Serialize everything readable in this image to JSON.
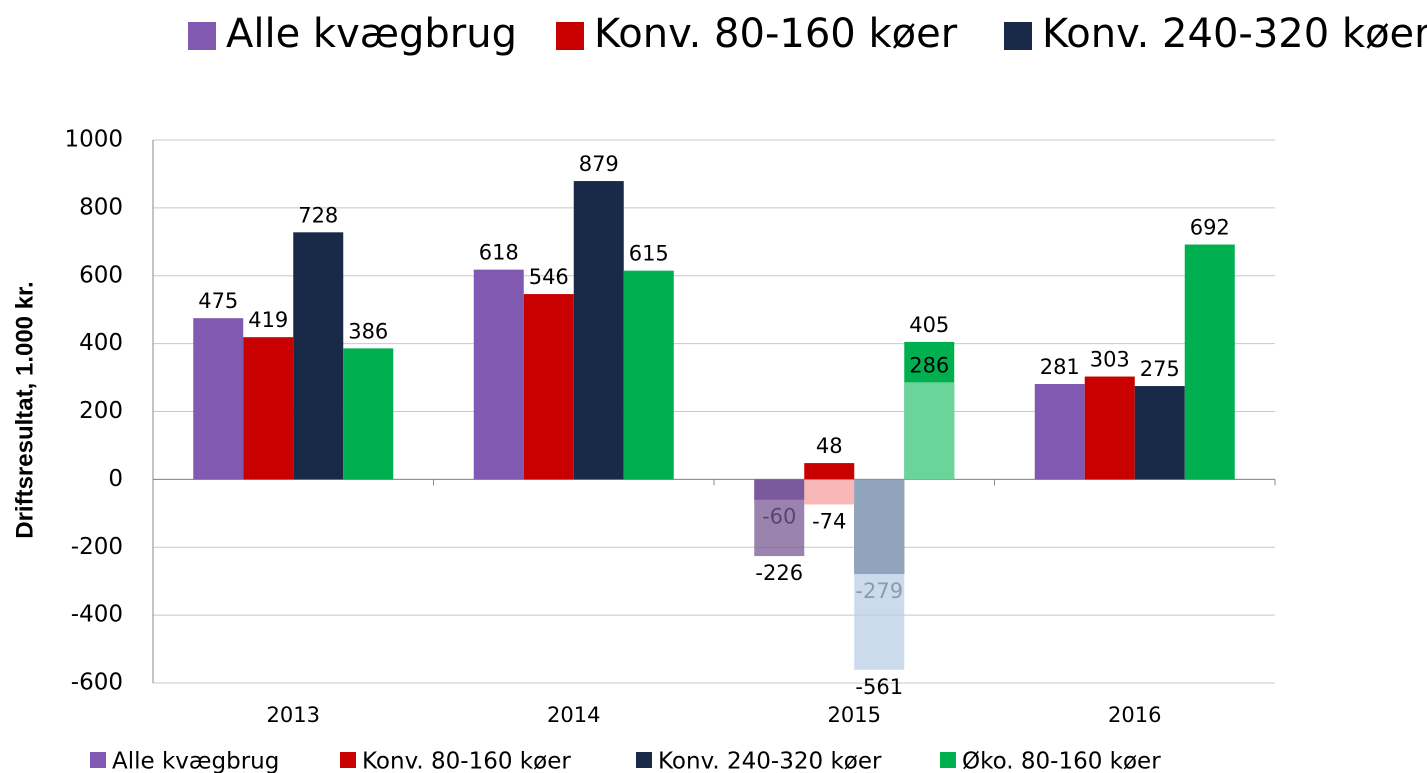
{
  "chart_data": {
    "type": "bar",
    "y_axis_label": "Driftsresultat, 1.000 kr.",
    "categories": [
      "2013",
      "2014",
      "2015",
      "2016"
    ],
    "series": [
      {
        "name": "Alle kvægbrug",
        "color": "#8259b0",
        "alt_color": "#7a5a95",
        "values": [
          475,
          618,
          -60,
          281
        ],
        "alt_values": [
          null,
          null,
          -226,
          null
        ]
      },
      {
        "name": "Konv. 80-160 køer",
        "color": "#c80000",
        "alt_color": "#f7a0a0",
        "values": [
          419,
          546,
          48,
          303
        ],
        "alt_values": [
          null,
          null,
          -74,
          null
        ]
      },
      {
        "name": "Konv. 240-320 køer",
        "color": "#182a48",
        "alt_color": "#b9cde6",
        "values": [
          728,
          879,
          -279,
          275
        ],
        "alt_values": [
          null,
          null,
          -561,
          null
        ]
      },
      {
        "name": "Øko. 80-160 køer",
        "color": "#00b050",
        "alt_color": "#8fe0b4",
        "values": [
          386,
          615,
          405,
          692
        ],
        "alt_values": [
          null,
          null,
          286,
          null
        ]
      }
    ],
    "top_legend_series": [
      0,
      1,
      2
    ],
    "ylim": [
      -600,
      1000
    ],
    "yticks": [
      -600,
      -400,
      -200,
      0,
      200,
      400,
      600,
      800,
      1000
    ],
    "grid": true
  }
}
